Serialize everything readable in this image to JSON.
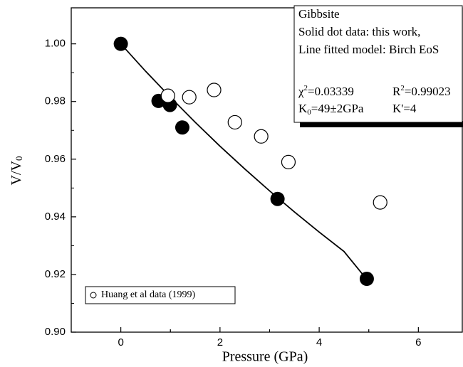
{
  "chart_data": {
    "type": "scatter",
    "xlabel": "Pressure (GPa)",
    "ylabel": {
      "main": "V/V",
      "sub": "0"
    },
    "xlim": [
      -1,
      6.9
    ],
    "xticks": [
      0,
      2,
      4,
      6
    ],
    "ylim": [
      0.9,
      1.0125
    ],
    "yticks": [
      {
        "value": 0.9,
        "label": "0.90"
      },
      0.92,
      0.94,
      0.96,
      0.98,
      {
        "value": 1.0,
        "label": "1.00"
      }
    ],
    "series": [
      {
        "kind": "line",
        "color": "#000000",
        "x": [
          0,
          0.5,
          1,
          1.5,
          2,
          2.5,
          3,
          3.5,
          4,
          4.5,
          4.95
        ],
        "values": [
          1.0,
          0.9905,
          0.9815,
          0.9728,
          0.9645,
          0.9566,
          0.949,
          0.9417,
          0.9347,
          0.928,
          0.9185
        ]
      },
      {
        "kind": "solid",
        "color": "#000000",
        "x": [
          0,
          0.76,
          0.99,
          1.24,
          3.16,
          4.96
        ],
        "values": [
          1.0,
          0.9802,
          0.9788,
          0.971,
          0.9462,
          0.9185
        ]
      },
      {
        "kind": "open",
        "name": "Huang et al data (1999)",
        "color": "#000000",
        "x": [
          0.95,
          1.38,
          1.88,
          2.3,
          2.83,
          3.38,
          5.23
        ],
        "values": [
          0.982,
          0.9815,
          0.984,
          0.9728,
          0.9679,
          0.959,
          0.945
        ]
      }
    ],
    "annotation": {
      "lines": [
        "Gibbsite",
        "Solid dot data: this work,",
        "Line fitted model: Birch EoS"
      ],
      "chi2": {
        "base": "χ",
        "sup": "2",
        "rest": "=0.03339"
      },
      "r2": {
        "base": "R",
        "sup": "2",
        "rest": "=0.99023"
      },
      "k0": {
        "base": "K",
        "sub": "0",
        "rest": "=49±2GPa"
      },
      "kp": "K'=4"
    }
  }
}
